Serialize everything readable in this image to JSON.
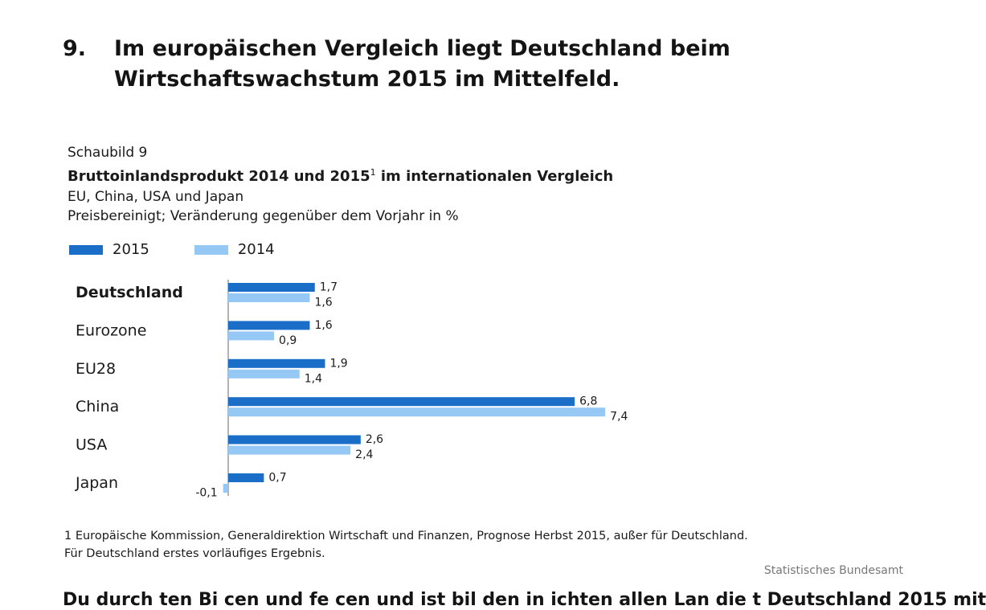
{
  "heading": {
    "number": "9.",
    "text": "Im europäischen Vergleich liegt Deutschland beim Wirtschaftswachstum 2015 im Mittelfeld."
  },
  "caption": {
    "label": "Schaubild 9",
    "title_main": "Bruttoinlandsprodukt 2014 und 2015",
    "title_sup": "1",
    "title_rest": " im internationalen Vergleich",
    "subtitle1": "EU, China, USA und Japan",
    "subtitle2": "Preisbereinigt; Veränderung gegenüber dem Vorjahr in %"
  },
  "chart_data": {
    "type": "bar",
    "orientation": "horizontal",
    "title": "Bruttoinlandsprodukt 2014 und 2015 im internationalen Vergleich",
    "categories": [
      "Deutschland",
      "Eurozone",
      "EU28",
      "China",
      "USA",
      "Japan"
    ],
    "highlight_category": "Deutschland",
    "series": [
      {
        "name": "2015",
        "color": "#1a6ec8",
        "values": [
          1.7,
          1.6,
          1.9,
          6.8,
          2.6,
          0.7
        ],
        "labels": [
          "1,7",
          "1,6",
          "1,9",
          "6,8",
          "2,6",
          "0,7"
        ]
      },
      {
        "name": "2014",
        "color": "#96c8f5",
        "values": [
          1.6,
          0.9,
          1.4,
          7.4,
          2.4,
          -0.1
        ],
        "labels": [
          "1,6",
          "0,9",
          "1,4",
          "7,4",
          "2,4",
          "-0,1"
        ]
      }
    ],
    "xlim": [
      -0.1,
      7.4
    ],
    "grid": false,
    "legend_position": "top-left"
  },
  "footnote": {
    "line1": "1 Europäische Kommission, Generaldirektion Wirtschaft und Finanzen, Prognose Herbst 2015, außer für Deutschland.",
    "line2": "Für Deutschland erstes vorläufiges Ergebnis."
  },
  "source": "Statistisches Bundesamt",
  "cutoff_text": "Du durch ten Bi cen und fe cen und ist bil den in ichten allen Lan die t Deutschland 2015 mit"
}
